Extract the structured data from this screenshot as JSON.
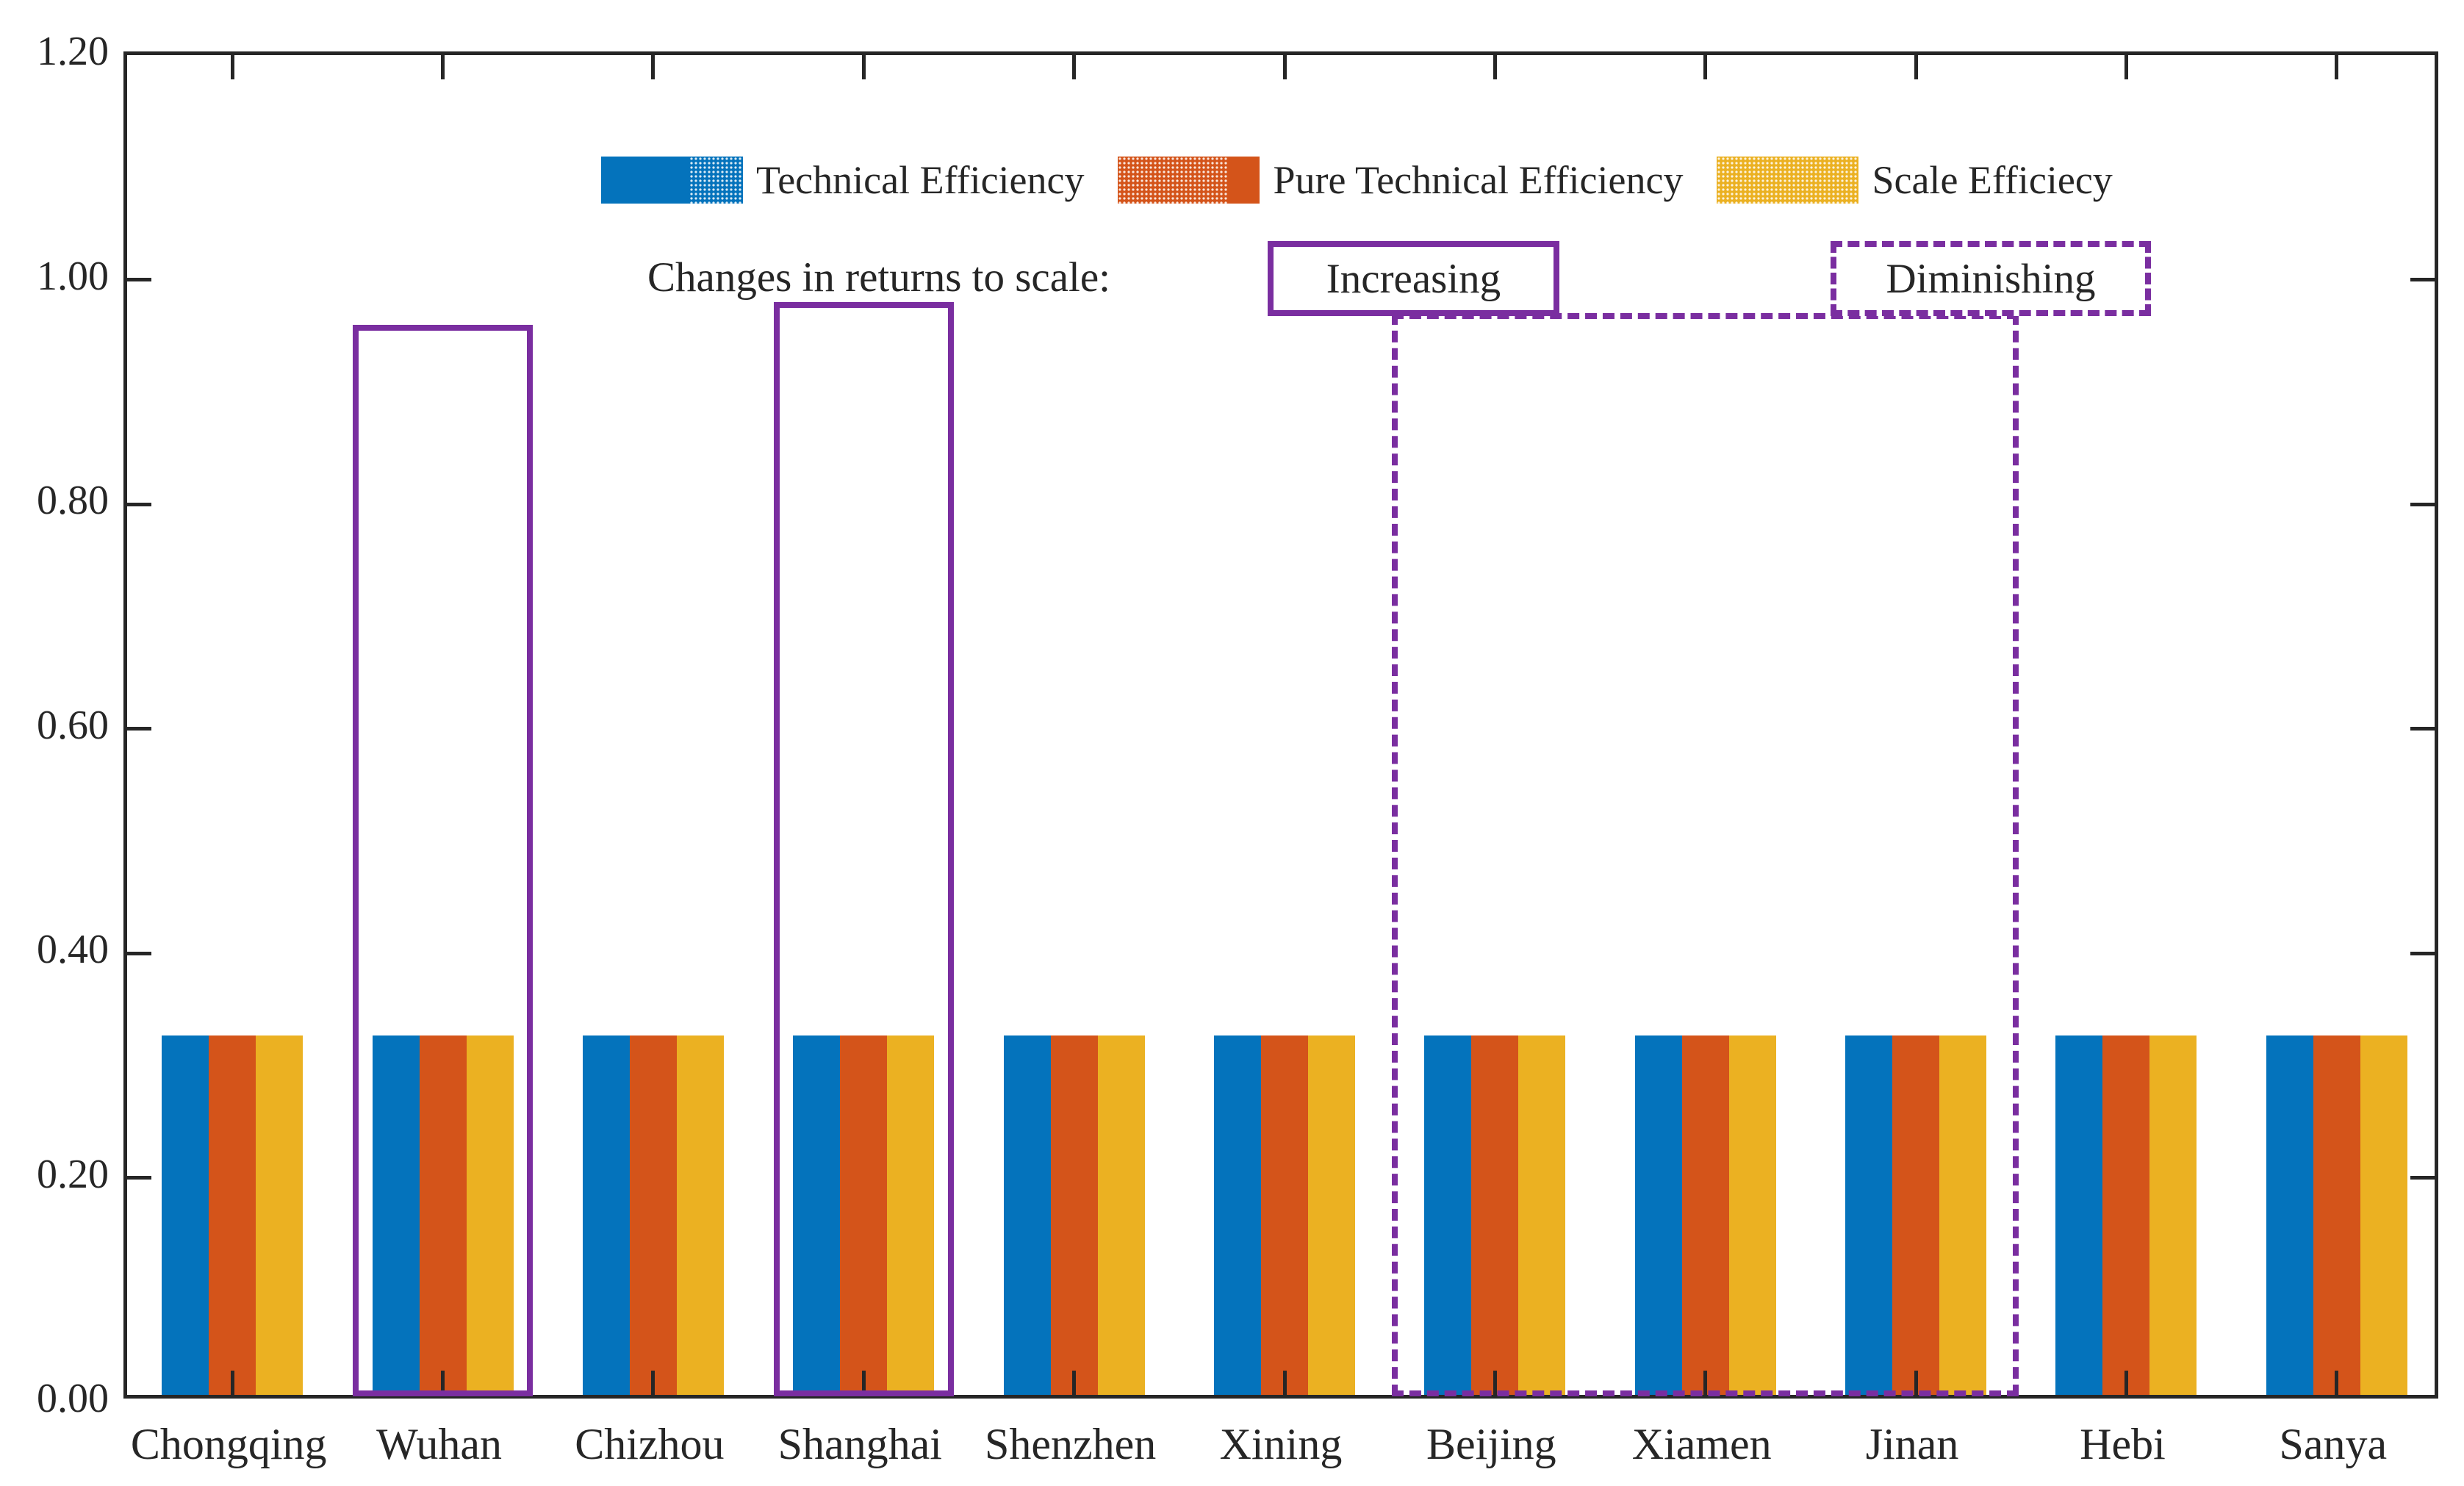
{
  "chart_data": {
    "type": "bar",
    "title": "",
    "categories": [
      "Chongqing",
      "Wuhan",
      "Chizhou",
      "Shanghai",
      "Shenzhen",
      "Xining",
      "Beijing",
      "Xiamen",
      "Jinan",
      "Hebi",
      "Sanya"
    ],
    "series": [
      {
        "name": "Technical Efficiency",
        "color": "#0473BC",
        "values": [
          0.32,
          0.32,
          0.32,
          0.32,
          0.32,
          0.32,
          0.32,
          0.32,
          0.32,
          0.32,
          0.32
        ]
      },
      {
        "name": "Pure Technical Efficiency",
        "color": "#D4541A",
        "values": [
          0.32,
          0.32,
          0.32,
          0.32,
          0.32,
          0.32,
          0.32,
          0.32,
          0.32,
          0.32,
          0.32
        ]
      },
      {
        "name": "Scale Efficiecy",
        "color": "#EBB122",
        "values": [
          0.32,
          0.32,
          0.32,
          0.32,
          0.32,
          0.32,
          0.32,
          0.32,
          0.32,
          0.32,
          0.32
        ]
      }
    ],
    "xlabel": "",
    "ylabel": "",
    "ylim": [
      0,
      1.2
    ],
    "yticks": [
      "0.00",
      "0.20",
      "0.40",
      "0.60",
      "0.80",
      "1.00",
      "1.20"
    ],
    "grid": false,
    "legend_position": "top-center",
    "annotations": {
      "label": "Changes in returns to scale:",
      "increasing_label": "Increasing",
      "diminishing_label": "Diminishing",
      "accent_color": "#7A2EA0",
      "boxes": [
        {
          "cities": [
            "Wuhan"
          ],
          "style": "solid",
          "top": 0.96,
          "bottom": 0.005
        },
        {
          "cities": [
            "Shanghai"
          ],
          "style": "solid",
          "top": 0.98,
          "bottom": 0.005
        },
        {
          "cities": [
            "Beijing",
            "Xiamen",
            "Jinan"
          ],
          "style": "dashed",
          "top": 0.97,
          "bottom": 0.005
        }
      ]
    },
    "axis_color": "#262626"
  }
}
